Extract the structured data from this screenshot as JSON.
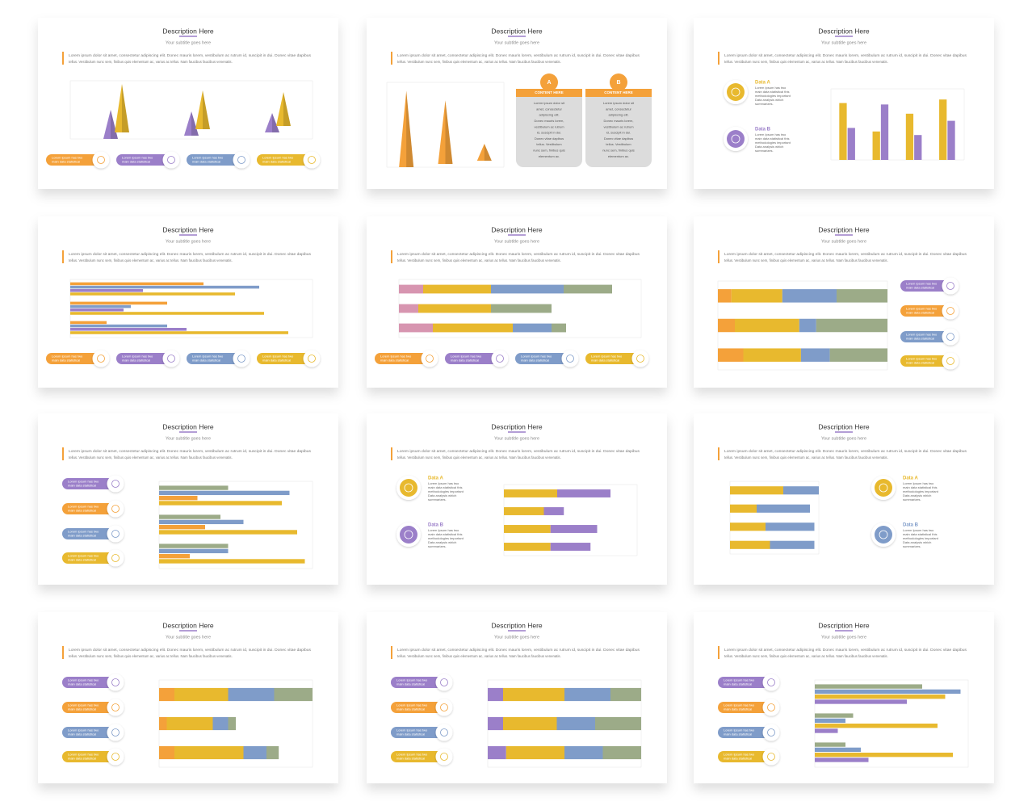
{
  "common": {
    "title": "Description Here",
    "subtitle": "Your subtitle goes here",
    "body": [
      "Lorem ipsum dolor sit amet, consectetur adipiscing elit. Donec mauris lorem, vestibulum ac rutrum id, suscipit in dui. Donec vitae dapibus",
      "tellus. Vestibulum nunc sem, finibus quis elementum ac, varius ac tellus. Nam faucibus faucibus venenatis."
    ],
    "pill_text": [
      "Lorem Ipsum has two",
      "main data statistical"
    ],
    "data_text": [
      "Lorem Ipsum has two",
      "main data statistical this",
      "methodologies important",
      "Data analysis which",
      "summarizes."
    ],
    "card_heading": "CONTENT HERE",
    "card_text": [
      "Lorem ipsum dolor sit",
      "amet, consectetur",
      "adipiscing elit.",
      "Donec mauris lorem,",
      "vestibulum ac rutrum",
      "id, suscipit in dui.",
      "Donec vitae dapibus",
      "tellus. Vestibulum",
      "nunc sem, finibus quis",
      "elementum ac."
    ]
  },
  "slides": [
    {
      "layout": "pills-bottom",
      "pill_colors": [
        "#f4a13a",
        "#9b7fc9",
        "#7f9cc9",
        "#e8b92e"
      ],
      "chart": {
        "type": "pyramid",
        "ylim": [
          0,
          60
        ],
        "series": [
          {
            "color": "#9b7fc9",
            "values": [
              30,
              25,
              20
            ]
          },
          {
            "color": "#e8b92e",
            "values": [
              50,
              40,
              35
            ]
          }
        ]
      }
    },
    {
      "layout": "cards-right",
      "cards": [
        {
          "letter": "A"
        },
        {
          "letter": "B"
        }
      ],
      "chart": {
        "type": "pyramid",
        "ylim": [
          0,
          100
        ],
        "series": [
          {
            "color": "#f4a13a",
            "values": [
              90,
              75,
              20
            ]
          }
        ]
      }
    },
    {
      "layout": "data-left",
      "items": [
        {
          "label": "Data A",
          "color": "#e8b92e"
        },
        {
          "label": "Data B",
          "color": "#9b7fc9"
        }
      ],
      "chart": {
        "type": "vbar",
        "ylim": [
          0,
          100
        ],
        "series": [
          {
            "color": "#e8b92e",
            "values": [
              80,
              40,
              65,
              85
            ]
          },
          {
            "color": "#9b7fc9",
            "values": [
              45,
              78,
              35,
              55
            ]
          }
        ]
      }
    },
    {
      "layout": "pills-bottom",
      "pill_colors": [
        "#f4a13a",
        "#9b7fc9",
        "#7f9cc9",
        "#e8b92e"
      ],
      "chart": {
        "type": "hbar",
        "xlim": [
          0,
          100
        ],
        "series": [
          {
            "color": "#f4a13a",
            "values": [
              55,
              40,
              15
            ]
          },
          {
            "color": "#7f9cc9",
            "values": [
              78,
              25,
              40
            ]
          },
          {
            "color": "#9b7fc9",
            "values": [
              30,
              22,
              48
            ]
          },
          {
            "color": "#e8b92e",
            "values": [
              68,
              80,
              90
            ]
          }
        ]
      }
    },
    {
      "layout": "pills-bottom",
      "pill_colors": [
        "#f4a13a",
        "#9b7fc9",
        "#7f9cc9",
        "#e8b92e"
      ],
      "chart": {
        "type": "stacked",
        "xlim": [
          0,
          100
        ],
        "series": [
          {
            "color": "#d795b0",
            "values": [
              10,
              8,
              14
            ]
          },
          {
            "color": "#e8b92e",
            "values": [
              28,
              30,
              33
            ]
          },
          {
            "color": "#7f9cc9",
            "values": [
              30,
              0,
              16
            ]
          },
          {
            "color": "#9cab88",
            "values": [
              20,
              25,
              6
            ]
          }
        ]
      }
    },
    {
      "layout": "pills-right",
      "pill_colors": [
        "#9b7fc9",
        "#f4a13a",
        "#7f9cc9",
        "#e8b92e"
      ],
      "chart": {
        "type": "stacked",
        "xlim": [
          0,
          100
        ],
        "series": [
          {
            "color": "#f4a13a",
            "values": [
              8,
              10,
              15
            ]
          },
          {
            "color": "#e8b92e",
            "values": [
              30,
              38,
              34
            ]
          },
          {
            "color": "#7f9cc9",
            "values": [
              32,
              10,
              17
            ]
          },
          {
            "color": "#9cab88",
            "values": [
              30,
              42,
              34
            ]
          }
        ]
      }
    },
    {
      "layout": "pills-left",
      "pill_colors": [
        "#9b7fc9",
        "#f4a13a",
        "#7f9cc9",
        "#e8b92e"
      ],
      "chart": {
        "type": "hbar",
        "xlim": [
          0,
          100
        ],
        "series": [
          {
            "color": "#9cab88",
            "values": [
              45,
              40,
              45
            ]
          },
          {
            "color": "#7f9cc9",
            "values": [
              85,
              55,
              45
            ]
          },
          {
            "color": "#f4a13a",
            "values": [
              25,
              30,
              20
            ]
          },
          {
            "color": "#e8b92e",
            "values": [
              80,
              90,
              95
            ]
          }
        ]
      }
    },
    {
      "layout": "data-left",
      "items": [
        {
          "label": "Data A",
          "color": "#e8b92e"
        },
        {
          "label": "Data B",
          "color": "#9b7fc9"
        }
      ],
      "chart": {
        "type": "stacked",
        "xlim": [
          0,
          100
        ],
        "series": [
          {
            "color": "#e8b92e",
            "values": [
              40,
              30,
              35,
              35
            ]
          },
          {
            "color": "#9b7fc9",
            "values": [
              40,
              15,
              35,
              30
            ]
          }
        ]
      }
    },
    {
      "layout": "data-right",
      "items": [
        {
          "label": "Data A",
          "color": "#e8b92e"
        },
        {
          "label": "Data B",
          "color": "#7f9cc9"
        }
      ],
      "chart": {
        "type": "stacked",
        "xlim": [
          0,
          100
        ],
        "series": [
          {
            "color": "#e8b92e",
            "values": [
              60,
              30,
              40,
              45
            ]
          },
          {
            "color": "#7f9cc9",
            "values": [
              40,
              60,
              55,
              50
            ]
          }
        ]
      }
    },
    {
      "layout": "pills-left",
      "pill_colors": [
        "#9b7fc9",
        "#f4a13a",
        "#7f9cc9",
        "#e8b92e"
      ],
      "chart": {
        "type": "stacked",
        "xlim": [
          0,
          100
        ],
        "series": [
          {
            "color": "#f4a13a",
            "values": [
              10,
              5,
              10
            ]
          },
          {
            "color": "#e8b92e",
            "values": [
              35,
              30,
              45
            ]
          },
          {
            "color": "#7f9cc9",
            "values": [
              30,
              10,
              15
            ]
          },
          {
            "color": "#9cab88",
            "values": [
              25,
              5,
              8
            ]
          }
        ]
      }
    },
    {
      "layout": "pills-left",
      "pill_colors": [
        "#9b7fc9",
        "#f4a13a",
        "#7f9cc9",
        "#e8b92e"
      ],
      "chart": {
        "type": "stacked",
        "xlim": [
          0,
          100
        ],
        "series": [
          {
            "color": "#9b7fc9",
            "values": [
              10,
              10,
              12
            ]
          },
          {
            "color": "#e8b92e",
            "values": [
              40,
              35,
              38
            ]
          },
          {
            "color": "#7f9cc9",
            "values": [
              30,
              25,
              25
            ]
          },
          {
            "color": "#9cab88",
            "values": [
              20,
              30,
              25
            ]
          }
        ]
      }
    },
    {
      "layout": "pills-left",
      "pill_colors": [
        "#9b7fc9",
        "#f4a13a",
        "#7f9cc9",
        "#e8b92e"
      ],
      "chart": {
        "type": "hbar",
        "xlim": [
          0,
          100
        ],
        "series": [
          {
            "color": "#9cab88",
            "values": [
              70,
              25,
              20
            ]
          },
          {
            "color": "#7f9cc9",
            "values": [
              95,
              20,
              30
            ]
          },
          {
            "color": "#e8b92e",
            "values": [
              85,
              80,
              90
            ]
          },
          {
            "color": "#9b7fc9",
            "values": [
              60,
              15,
              35
            ]
          }
        ]
      }
    }
  ]
}
